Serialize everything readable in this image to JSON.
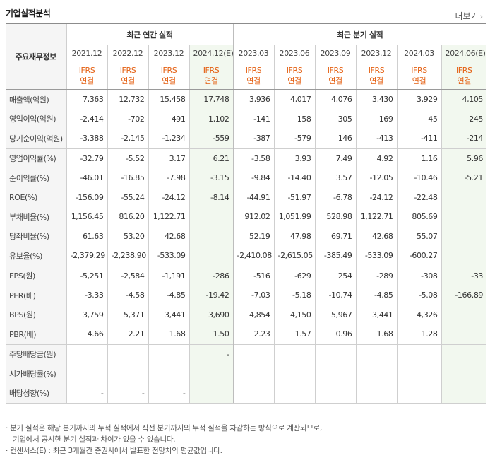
{
  "header": {
    "title": "기업실적분석",
    "more_label": "더보기",
    "more_icon": "chevron-right-icon"
  },
  "table": {
    "row_header_label": "주요재무정보",
    "groups": {
      "annual": "최근 연간 실적",
      "quarterly": "최근 분기 실적"
    },
    "periods": [
      "2021.12",
      "2022.12",
      "2023.12",
      "2024.12(E)",
      "2023.03",
      "2023.06",
      "2023.09",
      "2023.12",
      "2024.03",
      "2024.06(E)"
    ],
    "ifrs_top": "IFRS",
    "ifrs_bottom": "연결",
    "rows": [
      {
        "label": "매출액(억원)",
        "values": [
          "7,363",
          "12,732",
          "15,458",
          "17,748",
          "3,936",
          "4,017",
          "4,076",
          "3,430",
          "3,929",
          "4,105"
        ]
      },
      {
        "label": "영업이익(억원)",
        "values": [
          "-2,414",
          "-702",
          "491",
          "1,102",
          "-141",
          "158",
          "305",
          "169",
          "45",
          "245"
        ]
      },
      {
        "label": "당기순이익(억원)",
        "values": [
          "-3,388",
          "-2,145",
          "-1,234",
          "-559",
          "-387",
          "-579",
          "146",
          "-413",
          "-411",
          "-214"
        ]
      },
      {
        "label": "영업이익률(%)",
        "values": [
          "-32.79",
          "-5.52",
          "3.17",
          "6.21",
          "-3.58",
          "3.93",
          "7.49",
          "4.92",
          "1.16",
          "5.96"
        ]
      },
      {
        "label": "순이익률(%)",
        "values": [
          "-46.01",
          "-16.85",
          "-7.98",
          "-3.15",
          "-9.84",
          "-14.40",
          "3.57",
          "-12.05",
          "-10.46",
          "-5.21"
        ]
      },
      {
        "label": "ROE(%)",
        "values": [
          "-156.09",
          "-55.24",
          "-24.12",
          "-8.14",
          "-44.91",
          "-51.97",
          "-6.78",
          "-24.12",
          "-22.48",
          ""
        ]
      },
      {
        "label": "부채비율(%)",
        "values": [
          "1,156.45",
          "816.20",
          "1,122.71",
          "",
          "912.02",
          "1,051.99",
          "528.98",
          "1,122.71",
          "805.69",
          ""
        ]
      },
      {
        "label": "당좌비율(%)",
        "values": [
          "61.63",
          "53.20",
          "42.68",
          "",
          "52.19",
          "47.98",
          "69.71",
          "42.68",
          "55.07",
          ""
        ]
      },
      {
        "label": "유보율(%)",
        "values": [
          "-2,379.29",
          "-2,238.90",
          "-533.09",
          "",
          "-2,410.08",
          "-2,615.05",
          "-385.49",
          "-533.09",
          "-600.27",
          ""
        ]
      },
      {
        "label": "EPS(원)",
        "values": [
          "-5,251",
          "-2,584",
          "-1,191",
          "-286",
          "-516",
          "-629",
          "254",
          "-289",
          "-308",
          "-33"
        ]
      },
      {
        "label": "PER(배)",
        "values": [
          "-3.33",
          "-4.58",
          "-4.85",
          "-19.42",
          "-7.03",
          "-5.18",
          "-10.74",
          "-4.85",
          "-5.08",
          "-166.89"
        ]
      },
      {
        "label": "BPS(원)",
        "values": [
          "3,759",
          "5,371",
          "3,441",
          "3,690",
          "4,854",
          "4,150",
          "5,967",
          "3,441",
          "4,326",
          ""
        ]
      },
      {
        "label": "PBR(배)",
        "values": [
          "4.66",
          "2.21",
          "1.68",
          "1.50",
          "2.23",
          "1.57",
          "0.96",
          "1.68",
          "1.28",
          ""
        ]
      },
      {
        "label": "주당배당금(원)",
        "values": [
          "",
          "",
          "",
          "-",
          "",
          "",
          "",
          "",
          "",
          ""
        ]
      },
      {
        "label": "시가배당률(%)",
        "values": [
          "",
          "",
          "",
          "",
          "",
          "",
          "",
          "",
          "",
          ""
        ]
      },
      {
        "label": "배당성향(%)",
        "values": [
          "-",
          "-",
          "-",
          "",
          "",
          "",
          "",
          "",
          "",
          ""
        ]
      }
    ]
  },
  "footnotes": [
    "· 분기 실적은 해당 분기까지의 누적 실적에서 직전 분기까지의 누적 실적을 차감하는 방식으로 계산되므로,",
    "기업에서 공시한 분기 실적과 차이가 있을 수 있습니다.",
    "· 컨센서스(E) : 최근 3개월간 증권사에서 발표한 전망치의 평균값입니다."
  ],
  "colors": {
    "negative": "#e02424",
    "ifrs": "#e45f11",
    "estimate_bg": "#f2f8ef",
    "label_bg": "#f5f5f5"
  }
}
